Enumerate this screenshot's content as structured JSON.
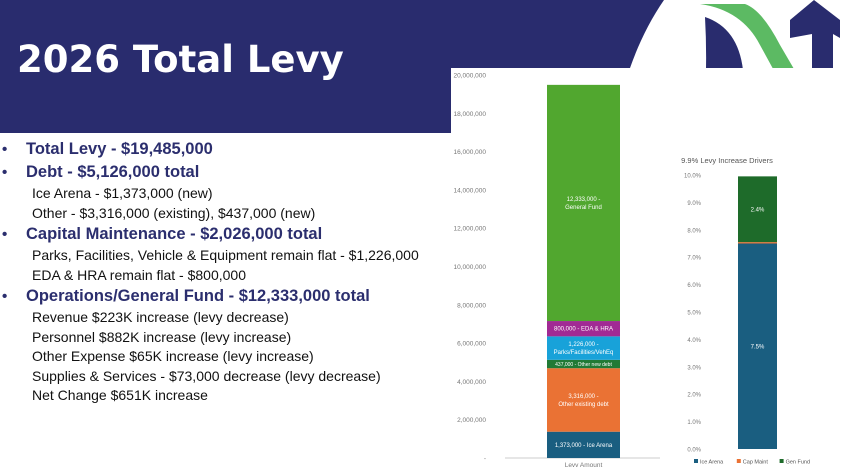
{
  "slide": {
    "title": "2026 Total Levy",
    "colors": {
      "banner": "#292c6e",
      "logo_green": "#5cba63",
      "text": "#2b2e6e"
    },
    "bullets": [
      {
        "text": "Total Levy - $19,485,000",
        "subs": []
      },
      {
        "text": "Debt - $5,126,000 total",
        "subs": [
          "Ice Arena - $1,373,000 (new)",
          "Other - $3,316,000 (existing), $437,000 (new)"
        ]
      },
      {
        "text": "Capital Maintenance - $2,026,000 total",
        "subs": [
          "Parks, Facilities, Vehicle & Equipment remain flat - $1,226,000",
          "EDA & HRA remain flat - $800,000"
        ]
      },
      {
        "text": "Operations/General Fund - $12,333,000 total",
        "subs": [
          "Revenue $223K increase (levy decrease)",
          "Personnel $882K increase (levy increase)",
          "Other Expense $65K increase (levy increase)",
          "Supplies & Services - $73,000 decrease (levy decrease)",
          "Net Change $651K increase"
        ]
      }
    ]
  },
  "chart_data": [
    {
      "type": "bar",
      "stacked": true,
      "title": "",
      "categories": [
        "Levy Amount"
      ],
      "ylim": [
        0,
        20000000
      ],
      "yticks": [
        "-",
        "2,000,000",
        "4,000,000",
        "6,000,000",
        "8,000,000",
        "10,000,000",
        "12,000,000",
        "14,000,000",
        "16,000,000",
        "18,000,000",
        "20,000,000"
      ],
      "series": [
        {
          "label": "1,373,000 - Ice Arena",
          "values": [
            1373000
          ],
          "color": "#1a5e80"
        },
        {
          "label": "3,316,000 - Other existing debt",
          "values": [
            3316000
          ],
          "color": "#ea7234"
        },
        {
          "label": "437,000 - Other new debt",
          "values": [
            437000
          ],
          "color": "#217a35"
        },
        {
          "label": "1,226,000 - Parks/Facilities/VehEq",
          "values": [
            1226000
          ],
          "color": "#18a2d9"
        },
        {
          "label": "800,000 - EDA & HRA",
          "values": [
            800000
          ],
          "color": "#a12a94"
        },
        {
          "label": "12,333,000 - General Fund",
          "values": [
            12333000
          ],
          "color": "#51a72f"
        }
      ]
    },
    {
      "type": "bar",
      "stacked": true,
      "title": "9.9% Levy Increase Drivers",
      "ylim": [
        0,
        10
      ],
      "yticks": [
        "0.0%",
        "1.0%",
        "2.0%",
        "3.0%",
        "4.0%",
        "5.0%",
        "6.0%",
        "7.0%",
        "8.0%",
        "9.0%",
        "10.0%"
      ],
      "legend_position": "bottom",
      "series": [
        {
          "name": "Ice Arena",
          "value": 7.5,
          "label": "7.5%",
          "color": "#1a5e80"
        },
        {
          "name": "Cap Maint",
          "value": 0.05,
          "label": "",
          "color": "#ea7234"
        },
        {
          "name": "Gen Fund",
          "value": 2.4,
          "label": "2.4%",
          "color": "#1e6b2a"
        }
      ]
    }
  ]
}
